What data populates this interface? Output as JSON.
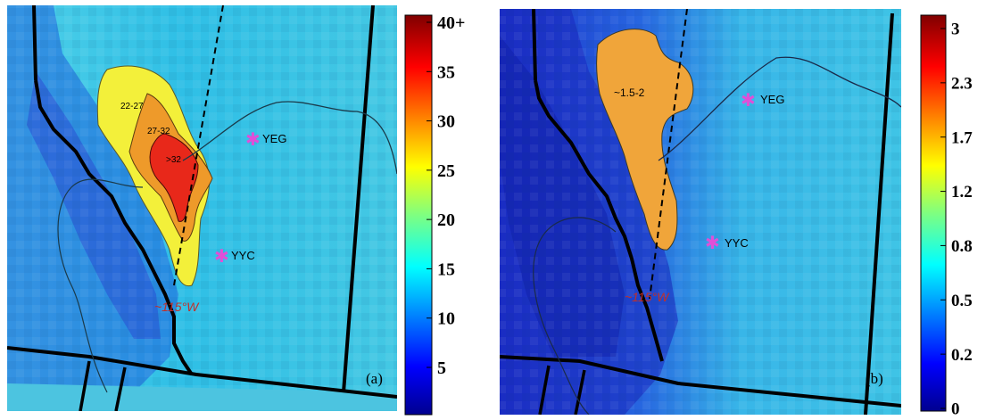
{
  "panels": [
    {
      "tag": "(a)",
      "cities": [
        {
          "name": "YEG",
          "marker": "asterisk-icon"
        },
        {
          "name": "YYC",
          "marker": "asterisk-icon"
        }
      ],
      "meridian_label": "~115°W",
      "contour_labels": [
        "22-27",
        "27-32",
        ">32"
      ],
      "colorbar": {
        "ticks": [
          "40+",
          "35",
          "30",
          "25",
          "20",
          "15",
          "10",
          "5"
        ],
        "range": [
          0,
          40
        ]
      }
    },
    {
      "tag": "(b)",
      "cities": [
        {
          "name": "YEG",
          "marker": "asterisk-icon"
        },
        {
          "name": "YYC",
          "marker": "asterisk-icon"
        }
      ],
      "meridian_label": "~115°W",
      "contour_labels": [
        "~1.5-2"
      ],
      "colorbar": {
        "ticks": [
          "3",
          "2.3",
          "1.7",
          "1.2",
          "0.8",
          "0.5",
          "0.2",
          "0"
        ],
        "range": [
          0,
          3
        ]
      }
    }
  ],
  "colors": {
    "background_field": "#33c6e6",
    "mountain_field": "#1f3fd8",
    "contour_yellow": "#f3f03a",
    "contour_orange": "#ee9a2a",
    "contour_red": "#e8281a",
    "contour_b_fill": "#f0a53a",
    "city_marker": "#e04fd8",
    "meridian_label": "#c0302a",
    "border": "#000000"
  }
}
